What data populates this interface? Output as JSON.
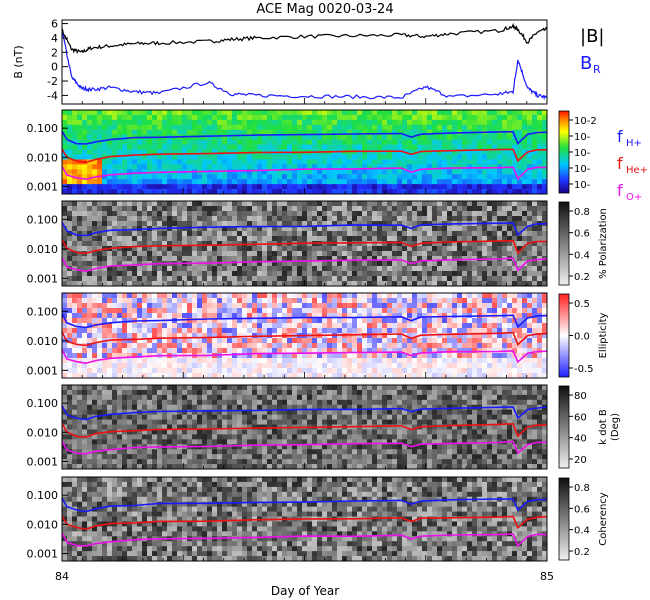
{
  "title": "ACE Mag 0020-03-24",
  "xaxis": {
    "label": "Day of Year",
    "tick_labels": [
      "84",
      "85"
    ],
    "range": [
      84,
      85
    ]
  },
  "chart_data": [
    {
      "type": "line",
      "panel": "magnetic-field",
      "ylabel": "B",
      "yunit": "(nT)",
      "ylim": [
        -5.2,
        6.5
      ],
      "yticks": [
        "6",
        "4",
        "2",
        "0",
        "-2",
        "-4"
      ],
      "x": [
        84.0,
        84.02,
        84.04,
        84.06,
        84.1,
        84.15,
        84.2,
        84.3,
        84.35,
        84.4,
        84.5,
        84.6,
        84.7,
        84.75,
        84.8,
        84.9,
        84.93,
        84.94,
        84.96,
        84.98,
        85.0
      ],
      "series": [
        {
          "name": "|B|",
          "color": "#000000",
          "values": [
            5.0,
            2.4,
            2.0,
            2.6,
            2.9,
            3.2,
            3.3,
            3.5,
            3.8,
            4.0,
            4.2,
            4.3,
            4.4,
            4.2,
            4.6,
            5.0,
            5.6,
            5.2,
            3.4,
            4.8,
            5.2
          ]
        },
        {
          "name": "B_R",
          "color": "#1a1aff",
          "values": [
            5.0,
            -1.5,
            -3.0,
            -3.2,
            -2.9,
            -3.5,
            -3.7,
            -2.2,
            -3.8,
            -4.0,
            -4.1,
            -4.2,
            -4.3,
            -2.8,
            -4.2,
            -3.8,
            -3.5,
            1.0,
            -3.0,
            -4.0,
            -4.3
          ]
        }
      ],
      "legend": [
        "|B|",
        "B",
        "R"
      ]
    },
    {
      "type": "heatmap",
      "panel": "power",
      "yticks": [
        "0.100",
        "0.010",
        "0.001"
      ],
      "colorbar_ticks": [
        "10-2",
        "10-",
        "10-",
        "10-",
        "10-"
      ],
      "legend": [
        {
          "label": "f",
          "sub": "H+",
          "color": "#1a1aff"
        },
        {
          "label": "f",
          "sub": "He+",
          "color": "#ee1111"
        },
        {
          "label": "f",
          "sub": "O+",
          "color": "#ee11ee"
        }
      ]
    },
    {
      "type": "heatmap",
      "panel": "polarization",
      "yticks": [
        "0.100",
        "0.010",
        "0.001"
      ],
      "colorbar_label": "% Polarization",
      "colorbar_ticks": [
        "0.8",
        "0.6",
        "0.4",
        "0.2"
      ]
    },
    {
      "type": "heatmap",
      "panel": "ellipticity",
      "yticks": [
        "0.100",
        "0.010",
        "0.001"
      ],
      "colorbar_label": "Ellipticity",
      "colorbar_ticks": [
        "0.5",
        "0.0",
        "-0.5"
      ]
    },
    {
      "type": "heatmap",
      "panel": "wave-normal-angle",
      "yticks": [
        "0.100",
        "0.010",
        "0.001"
      ],
      "colorbar_label": [
        "k dot B",
        "(Deg)"
      ],
      "colorbar_ticks": [
        "80",
        "60",
        "40",
        "20"
      ]
    },
    {
      "type": "heatmap",
      "panel": "coherency",
      "yticks": [
        "0.100",
        "0.010",
        "0.001"
      ],
      "colorbar_label": "Coherency",
      "colorbar_ticks": [
        "0.8",
        "0.6",
        "0.4",
        "0.2"
      ]
    }
  ],
  "gyrofrequencies": {
    "x": [
      84.0,
      84.01,
      84.03,
      84.05,
      84.07,
      84.1,
      84.15,
      84.2,
      84.3,
      84.4,
      84.5,
      84.6,
      84.7,
      84.72,
      84.74,
      84.8,
      84.9,
      84.93,
      84.94,
      84.96,
      84.98,
      85.0
    ],
    "H+": [
      0.08,
      0.04,
      0.03,
      0.028,
      0.035,
      0.042,
      0.046,
      0.05,
      0.053,
      0.057,
      0.06,
      0.063,
      0.066,
      0.05,
      0.064,
      0.068,
      0.072,
      0.075,
      0.03,
      0.06,
      0.07,
      0.073
    ],
    "He+": [
      0.02,
      0.01,
      0.0075,
      0.007,
      0.0088,
      0.0105,
      0.0115,
      0.0125,
      0.0133,
      0.0143,
      0.015,
      0.0158,
      0.0165,
      0.0125,
      0.016,
      0.017,
      0.018,
      0.0188,
      0.0075,
      0.015,
      0.0175,
      0.0183
    ],
    "O+": [
      0.005,
      0.0025,
      0.0019,
      0.0018,
      0.0022,
      0.0026,
      0.0029,
      0.0031,
      0.0033,
      0.0036,
      0.0038,
      0.004,
      0.0041,
      0.0031,
      0.004,
      0.0043,
      0.0045,
      0.0047,
      0.0019,
      0.0038,
      0.0044,
      0.0046
    ]
  }
}
